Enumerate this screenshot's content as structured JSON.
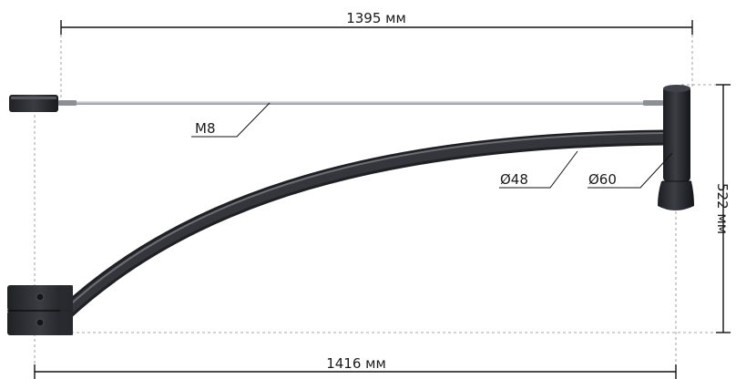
{
  "dimensions": {
    "top_width": "1395 мм",
    "bottom_width": "1416 мм",
    "height": "522 мм"
  },
  "callouts": {
    "rod_thread": "M8",
    "arm_diameter": "Ø48",
    "head_diameter": "Ø60"
  },
  "colors": {
    "metal_dark": "#2b2d31",
    "metal_highlight": "#6b6e74",
    "dimension_line": "#111111",
    "extension_line": "#8a8a8a",
    "rod": "#c9ccd2"
  }
}
